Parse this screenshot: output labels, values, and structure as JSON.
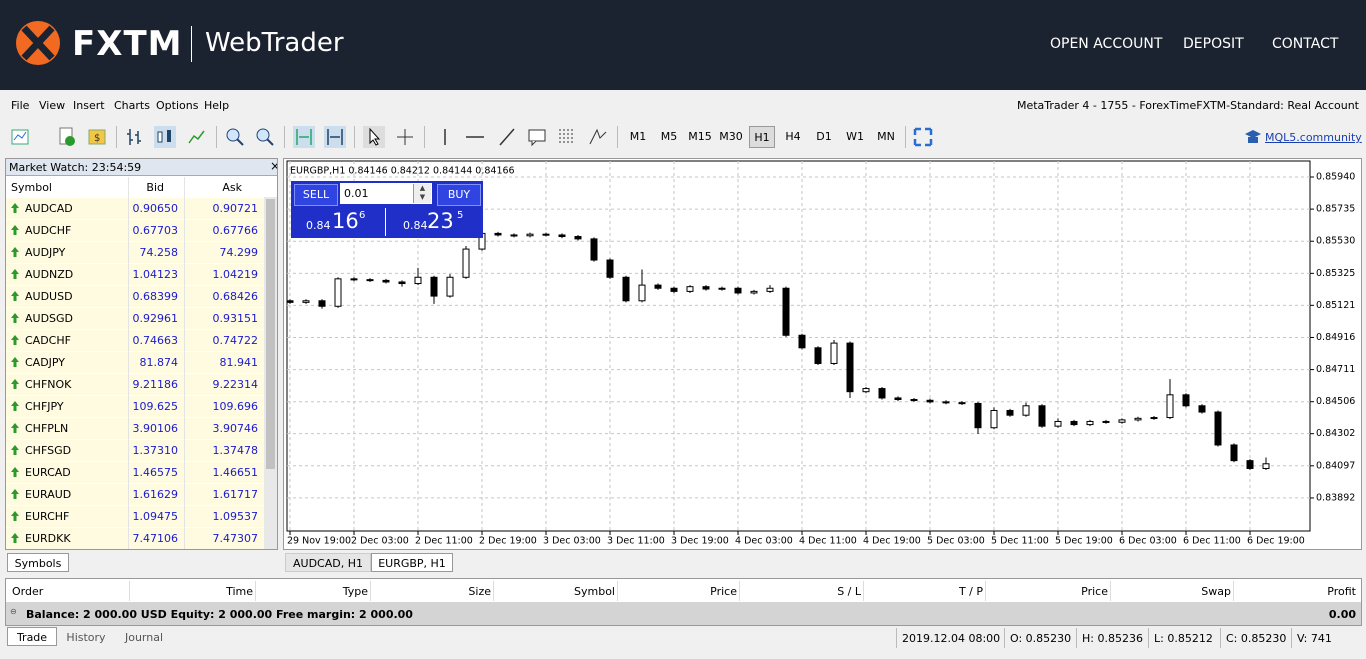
{
  "header": {
    "logo": "FXTM",
    "product": "WebTrader",
    "nav": [
      "OPEN ACCOUNT",
      "DEPOSIT",
      "CONTACT"
    ]
  },
  "menu": [
    "File",
    "View",
    "Insert",
    "Charts",
    "Options",
    "Help"
  ],
  "account_info": "MetaTrader 4 - 1755 - ForexTimeFXTM-Standard: Real Account",
  "timeframes": [
    "M1",
    "M5",
    "M15",
    "M30",
    "H1",
    "H4",
    "D1",
    "W1",
    "MN"
  ],
  "active_timeframe": 4,
  "community_link": "MQL5.community",
  "market_watch": {
    "title": "Market Watch: 23:54:59",
    "columns": [
      "Symbol",
      "Bid",
      "Ask"
    ],
    "rows": [
      [
        "AUDCAD",
        "0.90650",
        "0.90721"
      ],
      [
        "AUDCHF",
        "0.67703",
        "0.67766"
      ],
      [
        "AUDJPY",
        "74.258",
        "74.299"
      ],
      [
        "AUDNZD",
        "1.04123",
        "1.04219"
      ],
      [
        "AUDUSD",
        "0.68399",
        "0.68426"
      ],
      [
        "AUDSGD",
        "0.92961",
        "0.93151"
      ],
      [
        "CADCHF",
        "0.74663",
        "0.74722"
      ],
      [
        "CADJPY",
        "81.874",
        "81.941"
      ],
      [
        "CHFNOK",
        "9.21186",
        "9.22314"
      ],
      [
        "CHFJPY",
        "109.625",
        "109.696"
      ],
      [
        "CHFPLN",
        "3.90106",
        "3.90746"
      ],
      [
        "CHFSGD",
        "1.37310",
        "1.37478"
      ],
      [
        "EURCAD",
        "1.46575",
        "1.46651"
      ],
      [
        "EURAUD",
        "1.61629",
        "1.61717"
      ],
      [
        "EURCHF",
        "1.09475",
        "1.09537"
      ],
      [
        "EURDKK",
        "7.47106",
        "7.47307"
      ]
    ],
    "tab": "Symbols"
  },
  "chart_tabs": [
    "AUDCAD, H1",
    "EURGBP, H1"
  ],
  "trade_panel": {
    "sell": "SELL",
    "buy": "BUY",
    "lot": "0.01",
    "sell_big": "0.84",
    "sell_main": "16",
    "sell_small": "6",
    "buy_big": "0.84",
    "buy_main": "23",
    "buy_small": "5"
  },
  "chart_data": {
    "type": "candlestick",
    "title": "EURGBP,H1  0.84146 0.84212 0.84144 0.84166",
    "categories": [
      "29 Nov 19:00",
      null,
      null,
      null,
      "2 Dec 03:00",
      null,
      null,
      null,
      "2 Dec 11:00",
      null,
      null,
      null,
      "2 Dec 19:00",
      null,
      null,
      null,
      "3 Dec 03:00",
      null,
      null,
      null,
      "3 Dec 11:00",
      null,
      null,
      null,
      "3 Dec 19:00",
      null,
      null,
      null,
      "4 Dec 03:00",
      null,
      null,
      null,
      "4 Dec 11:00",
      null,
      null,
      null,
      "4 Dec 19:00",
      null,
      null,
      null,
      "5 Dec 03:00",
      null,
      null,
      null,
      "5 Dec 11:00",
      null,
      null,
      null,
      "5 Dec 19:00",
      null,
      null,
      null,
      "6 Dec 03:00",
      null,
      null,
      null,
      "6 Dec 11:00",
      null,
      null,
      null,
      "6 Dec 19:00",
      null
    ],
    "open": [
      0.8515,
      0.8514,
      0.8515,
      0.85115,
      0.8529,
      0.85285,
      0.8528,
      0.8527,
      0.8526,
      0.853,
      0.8518,
      0.853,
      0.8548,
      0.8558,
      0.8557,
      0.85565,
      0.85575,
      0.8557,
      0.8556,
      0.85545,
      0.8541,
      0.853,
      0.8515,
      0.8525,
      0.8523,
      0.8521,
      0.8524,
      0.85225,
      0.8523,
      0.852,
      0.8521,
      0.8523,
      0.8493,
      0.8485,
      0.8475,
      0.8488,
      0.8457,
      0.8459,
      0.8453,
      0.8452,
      0.84515,
      0.84505,
      0.845,
      0.84495,
      0.8434,
      0.8445,
      0.8442,
      0.8448,
      0.8435,
      0.8438,
      0.8436,
      0.8438,
      0.84375,
      0.8439,
      0.844,
      0.84405,
      0.8455,
      0.8448,
      0.8444,
      0.8423,
      0.8413,
      0.8408
    ],
    "high": [
      0.8516,
      0.8516,
      0.8516,
      0.853,
      0.853,
      0.85295,
      0.8529,
      0.8528,
      0.8536,
      0.8531,
      0.8532,
      0.855,
      0.8564,
      0.8559,
      0.8558,
      0.85585,
      0.85585,
      0.8558,
      0.8557,
      0.85555,
      0.8542,
      0.8531,
      0.8535,
      0.8526,
      0.8524,
      0.8525,
      0.8525,
      0.8524,
      0.8524,
      0.8522,
      0.8525,
      0.8524,
      0.8494,
      0.8486,
      0.849,
      0.8489,
      0.846,
      0.846,
      0.8454,
      0.8453,
      0.84525,
      0.84515,
      0.8451,
      0.84505,
      0.8447,
      0.8446,
      0.845,
      0.8449,
      0.844,
      0.8439,
      0.8439,
      0.8439,
      0.844,
      0.8441,
      0.84415,
      0.8465,
      0.8456,
      0.8449,
      0.8445,
      0.8424,
      0.8414,
      0.8415
    ],
    "low": [
      0.8513,
      0.8513,
      0.851,
      0.85105,
      0.85275,
      0.8527,
      0.8526,
      0.8524,
      0.8525,
      0.8513,
      0.8517,
      0.8529,
      0.8547,
      0.8556,
      0.85555,
      0.85555,
      0.8556,
      0.8555,
      0.85535,
      0.854,
      0.8529,
      0.8514,
      0.8514,
      0.8522,
      0.852,
      0.852,
      0.85215,
      0.85215,
      0.8519,
      0.8519,
      0.852,
      0.8492,
      0.8484,
      0.8474,
      0.8474,
      0.8453,
      0.8456,
      0.8452,
      0.8451,
      0.84505,
      0.84495,
      0.8449,
      0.84485,
      0.843,
      0.8433,
      0.8441,
      0.8441,
      0.8434,
      0.8434,
      0.8435,
      0.8435,
      0.84365,
      0.84365,
      0.8438,
      0.8439,
      0.84395,
      0.8447,
      0.8443,
      0.8422,
      0.8412,
      0.8407,
      0.8407
    ],
    "close": [
      0.8514,
      0.8515,
      0.85115,
      0.8529,
      0.85285,
      0.8528,
      0.8527,
      0.8526,
      0.853,
      0.8518,
      0.853,
      0.8548,
      0.8558,
      0.8557,
      0.85565,
      0.85575,
      0.8557,
      0.8556,
      0.85545,
      0.8541,
      0.853,
      0.8515,
      0.8525,
      0.8523,
      0.8521,
      0.8524,
      0.85225,
      0.8523,
      0.852,
      0.8521,
      0.8523,
      0.8493,
      0.8485,
      0.8475,
      0.8488,
      0.8457,
      0.8459,
      0.8453,
      0.8452,
      0.84515,
      0.84505,
      0.845,
      0.84495,
      0.8434,
      0.8445,
      0.8442,
      0.8448,
      0.8435,
      0.8438,
      0.8436,
      0.8438,
      0.84375,
      0.8439,
      0.844,
      0.84405,
      0.8455,
      0.8448,
      0.8444,
      0.8423,
      0.8413,
      0.8408,
      0.8411
    ],
    "ylim": [
      0.83681,
      0.86042
    ],
    "yticks": [
      {
        "value": 0.8594,
        "label": "0.85940"
      },
      {
        "value": 0.85735,
        "label": "0.85735"
      },
      {
        "value": 0.8553,
        "label": "0.85530"
      },
      {
        "value": 0.85325,
        "label": "0.85325"
      },
      {
        "value": 0.85121,
        "label": "0.85121"
      },
      {
        "value": 0.84916,
        "label": "0.84916"
      },
      {
        "value": 0.84711,
        "label": "0.84711"
      },
      {
        "value": 0.84506,
        "label": "0.84506"
      },
      {
        "value": 0.84302,
        "label": "0.84302"
      },
      {
        "value": 0.84097,
        "label": "0.84097"
      },
      {
        "value": 0.83892,
        "label": "0.83892"
      }
    ],
    "grid": true,
    "up_color": "#ffffff",
    "down_color": "#000000"
  },
  "terminal": {
    "columns": [
      "Order",
      "Time",
      "Type",
      "Size",
      "Symbol",
      "Price",
      "S / L",
      "T / P",
      "Price",
      "Swap",
      "Profit"
    ],
    "balance": "Balance: 2 000.00 USD  Equity: 2 000.00  Free margin: 2 000.00",
    "profit": "0.00",
    "tabs": [
      "Trade",
      "History",
      "Journal"
    ]
  },
  "status_bar": [
    "2019.12.04 08:00",
    "O: 0.85230",
    "H: 0.85236",
    "L: 0.85212",
    "C: 0.85230",
    "V: 741"
  ]
}
